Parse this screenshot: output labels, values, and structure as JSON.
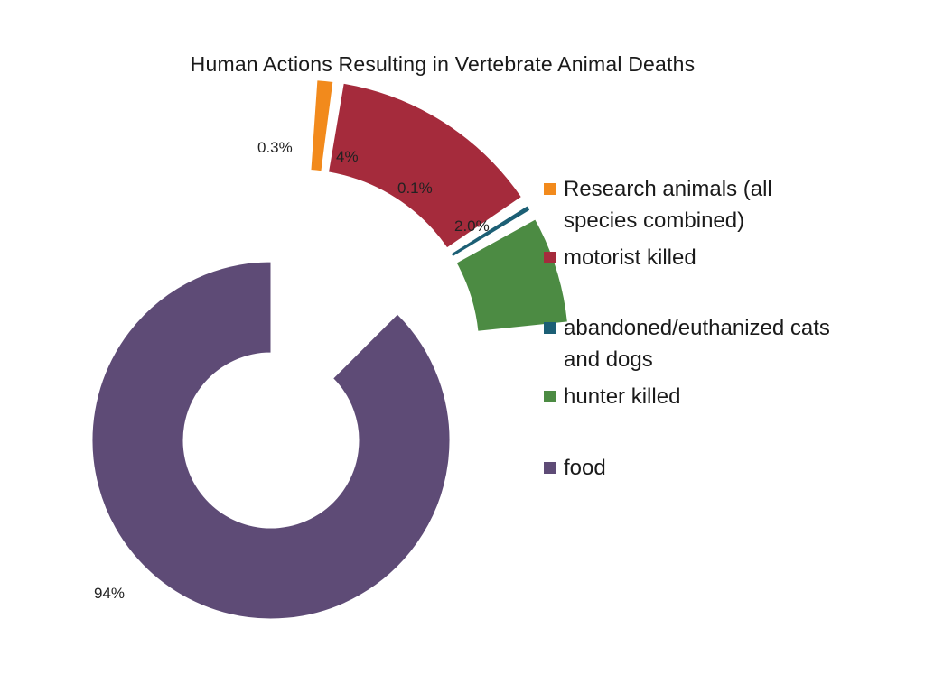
{
  "chart_data": {
    "type": "pie",
    "title": "Human Actions Resulting in Vertebrate Animal Deaths",
    "legend_position": "right",
    "slices": [
      {
        "label": "Research animals (all species combined)",
        "value": 0.3,
        "value_label": "0.3%",
        "color": "#f28a1c",
        "exploded": true
      },
      {
        "label": "motorist killed",
        "value": 4,
        "value_label": "4%",
        "color": "#a52b3c",
        "exploded": true
      },
      {
        "label": "abandoned/euthanized cats and dogs",
        "value": 0.1,
        "value_label": "0.1%",
        "color": "#1c5f75",
        "exploded": true
      },
      {
        "label": "hunter killed",
        "value": 2.0,
        "value_label": "2.0%",
        "color": "#4c8b43",
        "exploded": true
      },
      {
        "label": "food",
        "value": 94,
        "value_label": "94%",
        "color": "#5e4b76",
        "exploded": false
      }
    ]
  }
}
